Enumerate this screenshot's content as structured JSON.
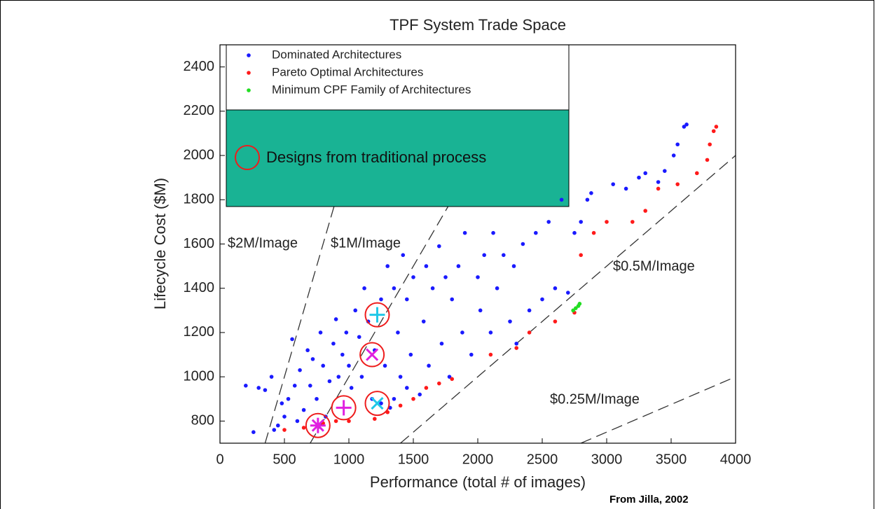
{
  "chart_data": {
    "type": "scatter",
    "title": "TPF System Trade Space",
    "x_label": "Performance (total # of images)",
    "y_label": "Lifecycle Cost ($M)",
    "source": "From Jilla, 2002",
    "xlim": [
      0,
      4000
    ],
    "ylim": [
      700,
      2500
    ],
    "xticks": [
      0,
      500,
      1000,
      1500,
      2000,
      2500,
      3000,
      3500,
      4000
    ],
    "yticks": [
      800,
      1000,
      1200,
      1400,
      1600,
      1800,
      2000,
      2200,
      2400
    ],
    "reference_lines": [
      {
        "label": "$2M/Image",
        "slope": 2
      },
      {
        "label": "$1M/Image",
        "slope": 1
      },
      {
        "label": "$0.5M/Image",
        "slope": 0.5
      },
      {
        "label": "$0.25M/Image",
        "slope": 0.25
      }
    ],
    "series": [
      {
        "name": "Dominated Architectures",
        "color": "#1a1aff",
        "x": [
          200,
          260,
          300,
          350,
          400,
          420,
          450,
          480,
          500,
          530,
          560,
          580,
          600,
          620,
          650,
          680,
          700,
          720,
          750,
          780,
          800,
          820,
          850,
          880,
          900,
          920,
          950,
          980,
          1000,
          1020,
          1050,
          1080,
          1100,
          1120,
          1150,
          1180,
          1200,
          1250,
          1280,
          1300,
          1320,
          1350,
          1380,
          1400,
          1420,
          1450,
          1480,
          1500,
          1550,
          1580,
          1600,
          1620,
          1650,
          1700,
          1720,
          1750,
          1780,
          1800,
          1850,
          1880,
          1900,
          1950,
          2000,
          2020,
          2050,
          2100,
          2120,
          2150,
          2200,
          2250,
          2280,
          2300,
          2350,
          2400,
          2450,
          2500,
          2550,
          2600,
          2650,
          2700,
          2750,
          2800,
          2850,
          2880,
          3050,
          3150,
          3250,
          3300,
          3400,
          3450,
          3520,
          3550,
          3600,
          3620,
          1250,
          1350,
          1450
        ],
        "values": [
          960,
          750,
          950,
          940,
          1000,
          760,
          780,
          880,
          820,
          900,
          1170,
          960,
          800,
          1030,
          850,
          1120,
          960,
          1080,
          900,
          1200,
          1050,
          820,
          980,
          1150,
          1260,
          1000,
          1100,
          1200,
          1050,
          950,
          1300,
          1180,
          1000,
          1400,
          1250,
          900,
          1120,
          1350,
          1050,
          1500,
          860,
          1400,
          1200,
          1000,
          1550,
          1350,
          1100,
          1450,
          920,
          1250,
          1500,
          1050,
          1400,
          1590,
          1150,
          1450,
          1000,
          1350,
          1500,
          1200,
          1650,
          1100,
          1450,
          1300,
          1550,
          1200,
          1650,
          1400,
          1550,
          1250,
          1500,
          1150,
          1600,
          1300,
          1650,
          1350,
          1700,
          1400,
          1800,
          1380,
          1650,
          1700,
          1800,
          1830,
          1870,
          1850,
          1900,
          1920,
          1880,
          1930,
          2000,
          2050,
          2130,
          2140,
          880,
          900,
          950
        ]
      },
      {
        "name": "Pareto Optimal Architectures",
        "color": "#ff1a1a",
        "x": [
          500,
          650,
          800,
          900,
          1000,
          1200,
          1300,
          1400,
          1500,
          1600,
          1700,
          1800,
          2100,
          2300,
          2400,
          2600,
          2750,
          2800,
          2900,
          3000,
          3200,
          3300,
          3400,
          3550,
          3700,
          3780,
          3800,
          3830,
          3850
        ],
        "values": [
          760,
          770,
          790,
          800,
          800,
          810,
          840,
          870,
          900,
          950,
          970,
          990,
          1100,
          1130,
          1200,
          1250,
          1290,
          1550,
          1650,
          1700,
          1700,
          1750,
          1850,
          1870,
          1920,
          1980,
          2050,
          2110,
          2130
        ]
      },
      {
        "name": "Minimum CPF Family of Architectures",
        "color": "#22dd22",
        "x": [
          2740,
          2760,
          2780,
          2790
        ],
        "values": [
          1300,
          1310,
          1320,
          1330
        ]
      },
      {
        "name": "Designs from traditional process",
        "color": "#ee1c1c",
        "x": [
          760,
          960,
          1220,
          1180,
          1220
        ],
        "values": [
          780,
          860,
          880,
          1100,
          1280
        ],
        "markers": [
          "asterisk",
          "plus",
          "x",
          "x",
          "plus"
        ],
        "marker_colors": [
          "#e020e0",
          "#e020e0",
          "#20c8e8",
          "#e020e0",
          "#20c8e8"
        ]
      }
    ]
  }
}
